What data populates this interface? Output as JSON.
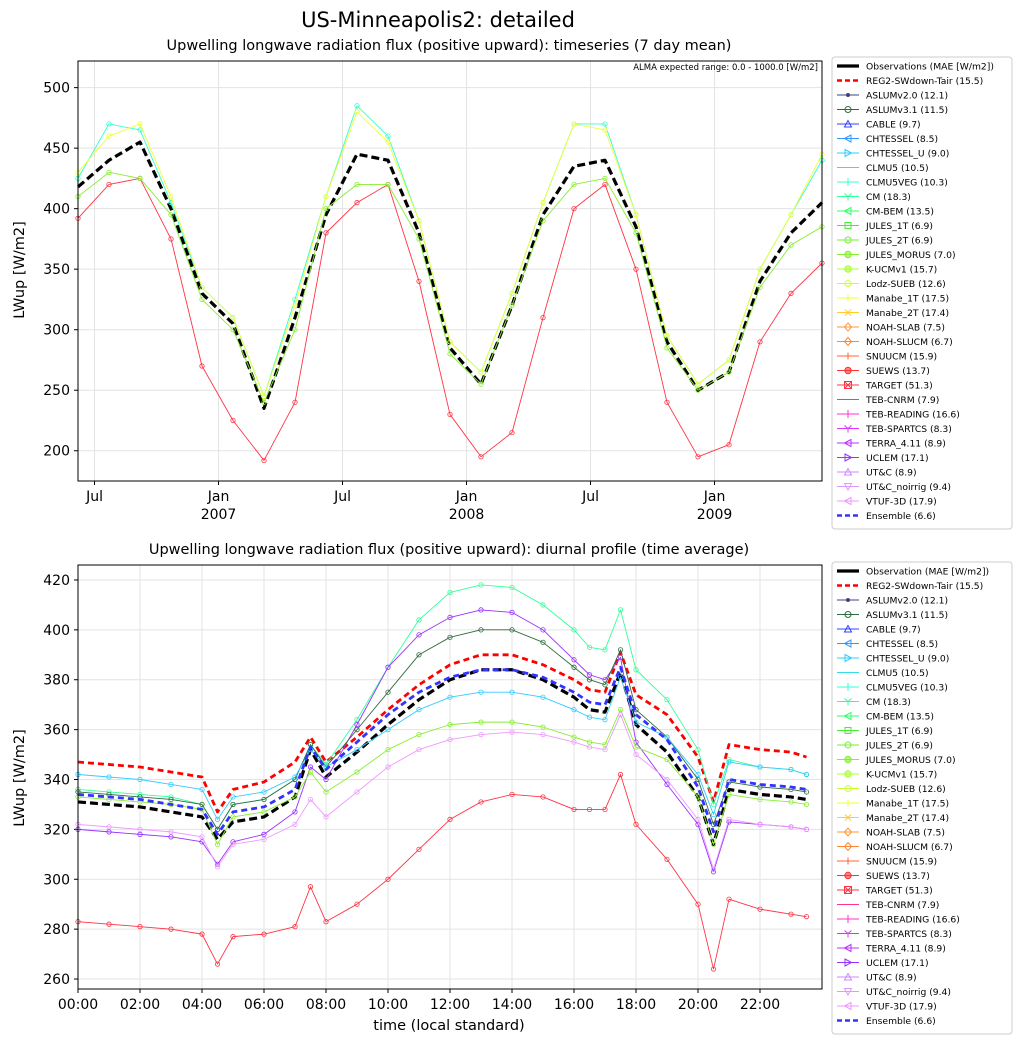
{
  "figure_title": "US-Minneapolis2: detailed",
  "chart_data": [
    {
      "type": "line",
      "title": "Upwelling longwave radiation flux (positive upward): timeseries (7 day mean)",
      "xlabel": "",
      "ylabel": "LWup [W/m2]",
      "ylim": [
        175,
        522
      ],
      "yticks": [
        200,
        250,
        300,
        350,
        400,
        450,
        500
      ],
      "x_tick_labels": [
        {
          "pos": 0.8,
          "label": "Jul",
          "sub": ""
        },
        {
          "pos": 6.8,
          "label": "Jan",
          "sub": "2007"
        },
        {
          "pos": 12.8,
          "label": "Jul",
          "sub": ""
        },
        {
          "pos": 18.8,
          "label": "Jan",
          "sub": "2008"
        },
        {
          "pos": 24.8,
          "label": "Jul",
          "sub": ""
        },
        {
          "pos": 30.8,
          "label": "Jan",
          "sub": "2009"
        }
      ],
      "xlim": [
        0,
        36
      ],
      "annotation": "ALMA expected range: 0.0 - 1000.0 [W/m2]",
      "x": [
        0,
        1.5,
        3,
        4.5,
        6,
        7.5,
        9,
        10.5,
        12,
        13.5,
        15,
        16.5,
        18,
        19.5,
        21,
        22.5,
        24,
        25.5,
        27,
        28.5,
        30,
        31.5,
        33,
        34.5,
        36
      ],
      "series": [
        {
          "name": "Observations (MAE [W/m2])",
          "values": [
            418,
            440,
            455,
            400,
            330,
            305,
            235,
            310,
            395,
            445,
            440,
            380,
            285,
            255,
            320,
            395,
            435,
            440,
            385,
            290,
            250,
            265,
            340,
            380,
            405
          ]
        },
        {
          "name": "TARGET (51.3)",
          "values": [
            392,
            420,
            425,
            375,
            270,
            225,
            192,
            240,
            380,
            405,
            420,
            340,
            230,
            195,
            215,
            310,
            400,
            420,
            350,
            240,
            195,
            205,
            290,
            330,
            355
          ]
        },
        {
          "name": "CLMU5VEG (10.3)",
          "values": [
            425,
            470,
            465,
            405,
            335,
            310,
            245,
            325,
            410,
            485,
            460,
            390,
            290,
            265,
            330,
            405,
            470,
            470,
            395,
            295,
            255,
            275,
            350,
            395,
            440
          ]
        },
        {
          "name": "JULES_MORUS (7.0)",
          "values": [
            410,
            430,
            425,
            395,
            325,
            300,
            240,
            300,
            400,
            420,
            420,
            375,
            280,
            255,
            320,
            390,
            420,
            425,
            380,
            285,
            250,
            265,
            335,
            370,
            385
          ]
        },
        {
          "name": "Manabe_1T (17.5)",
          "values": [
            430,
            460,
            470,
            410,
            335,
            310,
            245,
            320,
            410,
            480,
            455,
            390,
            290,
            265,
            330,
            405,
            470,
            465,
            395,
            295,
            255,
            275,
            350,
            395,
            445
          ]
        }
      ],
      "legend": "right-outside"
    },
    {
      "type": "line",
      "title": "Upwelling longwave radiation flux (positive upward): diurnal profile (time average)",
      "xlabel": "time (local standard)",
      "ylabel": "LWup [W/m2]",
      "ylim": [
        256,
        426
      ],
      "yticks": [
        260,
        280,
        300,
        320,
        340,
        360,
        380,
        400,
        420
      ],
      "xlim": [
        0,
        24
      ],
      "xticks": [
        {
          "pos": 0,
          "label": "00:00"
        },
        {
          "pos": 2,
          "label": "02:00"
        },
        {
          "pos": 4,
          "label": "04:00"
        },
        {
          "pos": 6,
          "label": "06:00"
        },
        {
          "pos": 8,
          "label": "08:00"
        },
        {
          "pos": 10,
          "label": "10:00"
        },
        {
          "pos": 12,
          "label": "12:00"
        },
        {
          "pos": 14,
          "label": "14:00"
        },
        {
          "pos": 16,
          "label": "16:00"
        },
        {
          "pos": 18,
          "label": "18:00"
        },
        {
          "pos": 20,
          "label": "20:00"
        },
        {
          "pos": 22,
          "label": "22:00"
        }
      ],
      "x": [
        0,
        1,
        2,
        3,
        4,
        4.5,
        5,
        6,
        7,
        7.5,
        8,
        9,
        10,
        11,
        12,
        13,
        14,
        15,
        16,
        16.5,
        17,
        17.5,
        18,
        19,
        20,
        20.5,
        21,
        22,
        23,
        23.5
      ],
      "series": [
        {
          "name": "Observation (MAE [W/m2])",
          "values": [
            331,
            330,
            329,
            327,
            325,
            316,
            323,
            325,
            333,
            352,
            341,
            351,
            362,
            372,
            380,
            384,
            384,
            380,
            373,
            368,
            367,
            383,
            362,
            351,
            333,
            314,
            336,
            334,
            333,
            332
          ]
        },
        {
          "name": "REG2-SWdown-Tair (15.5)",
          "values": [
            347,
            346,
            345,
            343,
            341,
            327,
            336,
            339,
            347,
            357,
            347,
            357,
            368,
            378,
            386,
            390,
            390,
            386,
            380,
            376,
            375,
            391,
            374,
            366,
            349,
            331,
            354,
            352,
            351,
            349
          ]
        },
        {
          "name": "TARGET (51.3)",
          "values": [
            283,
            282,
            281,
            280,
            278,
            266,
            277,
            278,
            281,
            297,
            283,
            290,
            300,
            312,
            324,
            331,
            334,
            333,
            328,
            328,
            328,
            342,
            322,
            308,
            290,
            264,
            292,
            288,
            286,
            285
          ]
        },
        {
          "name": "CM (18.3)",
          "values": [
            336,
            335,
            334,
            333,
            330,
            320,
            330,
            332,
            340,
            354,
            346,
            364,
            385,
            404,
            415,
            418,
            417,
            410,
            400,
            393,
            392,
            408,
            384,
            372,
            352,
            330,
            348,
            345,
            344,
            342
          ]
        },
        {
          "name": "UCLEM (17.1)",
          "values": [
            320,
            319,
            318,
            317,
            315,
            306,
            315,
            318,
            327,
            345,
            340,
            362,
            385,
            398,
            405,
            408,
            407,
            400,
            388,
            382,
            380,
            389,
            355,
            338,
            322,
            303,
            323,
            322,
            321,
            320
          ]
        },
        {
          "name": "ASLUMv3.1 (11.5)",
          "values": [
            335,
            334,
            333,
            332,
            330,
            320,
            330,
            332,
            340,
            354,
            345,
            360,
            375,
            390,
            397,
            400,
            400,
            395,
            385,
            380,
            378,
            392,
            368,
            357,
            340,
            322,
            339,
            337,
            336,
            335
          ]
        },
        {
          "name": "CHTESSEL_U (9.0)",
          "values": [
            342,
            341,
            340,
            338,
            336,
            324,
            333,
            335,
            341,
            352,
            345,
            352,
            360,
            368,
            373,
            375,
            375,
            373,
            368,
            365,
            364,
            381,
            363,
            357,
            342,
            326,
            347,
            345,
            344,
            342
          ]
        },
        {
          "name": "JULES_MORUS (7.0)",
          "values": [
            333,
            332,
            331,
            330,
            328,
            314,
            325,
            327,
            333,
            343,
            335,
            343,
            352,
            358,
            362,
            363,
            363,
            361,
            357,
            355,
            354,
            368,
            353,
            348,
            333,
            314,
            334,
            332,
            331,
            330
          ]
        },
        {
          "name": "VTUF-3D (17.9)",
          "values": [
            322,
            321,
            320,
            319,
            317,
            305,
            314,
            316,
            322,
            332,
            325,
            335,
            345,
            352,
            356,
            358,
            359,
            358,
            355,
            353,
            352,
            366,
            350,
            340,
            324,
            304,
            324,
            322,
            321,
            320
          ]
        },
        {
          "name": "Ensemble (6.6)",
          "values": [
            334,
            333,
            332,
            330,
            328,
            318,
            327,
            329,
            336,
            353,
            344,
            355,
            366,
            375,
            381,
            384,
            384,
            381,
            375,
            371,
            370,
            385,
            366,
            356,
            337,
            319,
            340,
            338,
            337,
            336
          ]
        }
      ],
      "legend": "right-outside"
    }
  ],
  "legend_top": [
    {
      "label": "Observations (MAE [W/m2])",
      "color": "#000000",
      "marker": "line"
    },
    {
      "label": "REG2-SWdown-Tair (15.5)",
      "color": "#ff0000",
      "marker": "dash"
    },
    {
      "label": "ASLUMv2.0 (12.1)",
      "color": "#404080",
      "marker": "dot"
    },
    {
      "label": "ASLUMv3.1 (11.5)",
      "color": "#2e6b3e",
      "marker": "circle"
    },
    {
      "label": "CABLE (9.7)",
      "color": "#3340ff",
      "marker": "triangle-up"
    },
    {
      "label": "CHTESSEL (8.5)",
      "color": "#3399ff",
      "marker": "triangle-left"
    },
    {
      "label": "CHTESSEL_U (9.0)",
      "color": "#33ccff",
      "marker": "triangle-right"
    },
    {
      "label": "CLMU5 (10.5)",
      "color": "#33ddee",
      "marker": "hline"
    },
    {
      "label": "CLMU5VEG (10.3)",
      "color": "#33ffcc",
      "marker": "vline"
    },
    {
      "label": "CM (18.3)",
      "color": "#33ff99",
      "marker": "tri"
    },
    {
      "label": "CM-BEM (13.5)",
      "color": "#33ff66",
      "marker": "caret-left"
    },
    {
      "label": "JULES_1T (6.9)",
      "color": "#44ee33",
      "marker": "square"
    },
    {
      "label": "JULES_2T (6.9)",
      "color": "#77ee33",
      "marker": "circle"
    },
    {
      "label": "JULES_MORUS (7.0)",
      "color": "#88ee33",
      "marker": "hexagon"
    },
    {
      "label": "K-UCMv1 (15.7)",
      "color": "#aaff33",
      "marker": "star"
    },
    {
      "label": "Lodz-SUEB (12.6)",
      "color": "#ccff33",
      "marker": "circle"
    },
    {
      "label": "Manabe_1T (17.5)",
      "color": "#eeff33",
      "marker": "plus"
    },
    {
      "label": "Manabe_2T (17.4)",
      "color": "#ffcc33",
      "marker": "x"
    },
    {
      "label": "NOAH-SLAB (7.5)",
      "color": "#ff9933",
      "marker": "diamond"
    },
    {
      "label": "NOAH-SLUCM (6.7)",
      "color": "#ff8833",
      "marker": "thin-diamond"
    },
    {
      "label": "SNUUCM (15.9)",
      "color": "#ff6633",
      "marker": "plus"
    },
    {
      "label": "SUEWS (13.7)",
      "color": "#ff3333",
      "marker": "pentagon"
    },
    {
      "label": "TARGET (51.3)",
      "color": "#ff3344",
      "marker": "x-square"
    },
    {
      "label": "TEB-CNRM (7.9)",
      "color": "#ff3388",
      "marker": "hline"
    },
    {
      "label": "TEB-READING (16.6)",
      "color": "#ff33cc",
      "marker": "vline"
    },
    {
      "label": "TEB-SPARTCS (8.3)",
      "color": "#dd33ff",
      "marker": "tri"
    },
    {
      "label": "TERRA_4.11 (8.9)",
      "color": "#bb33ff",
      "marker": "caret-left"
    },
    {
      "label": "UCLEM (17.1)",
      "color": "#9933ff",
      "marker": "caret-right"
    },
    {
      "label": "UT&C (8.9)",
      "color": "#cc88ff",
      "marker": "caret-up"
    },
    {
      "label": "UT&C_noirrig (9.4)",
      "color": "#dd99ff",
      "marker": "caret-down"
    },
    {
      "label": "VTUF-3D (17.9)",
      "color": "#ee99ff",
      "marker": "caret-left"
    },
    {
      "label": "Ensemble (6.6)",
      "color": "#3333ff",
      "marker": "dash"
    }
  ],
  "legend_bottom_first": "Observation (MAE [W/m2])"
}
